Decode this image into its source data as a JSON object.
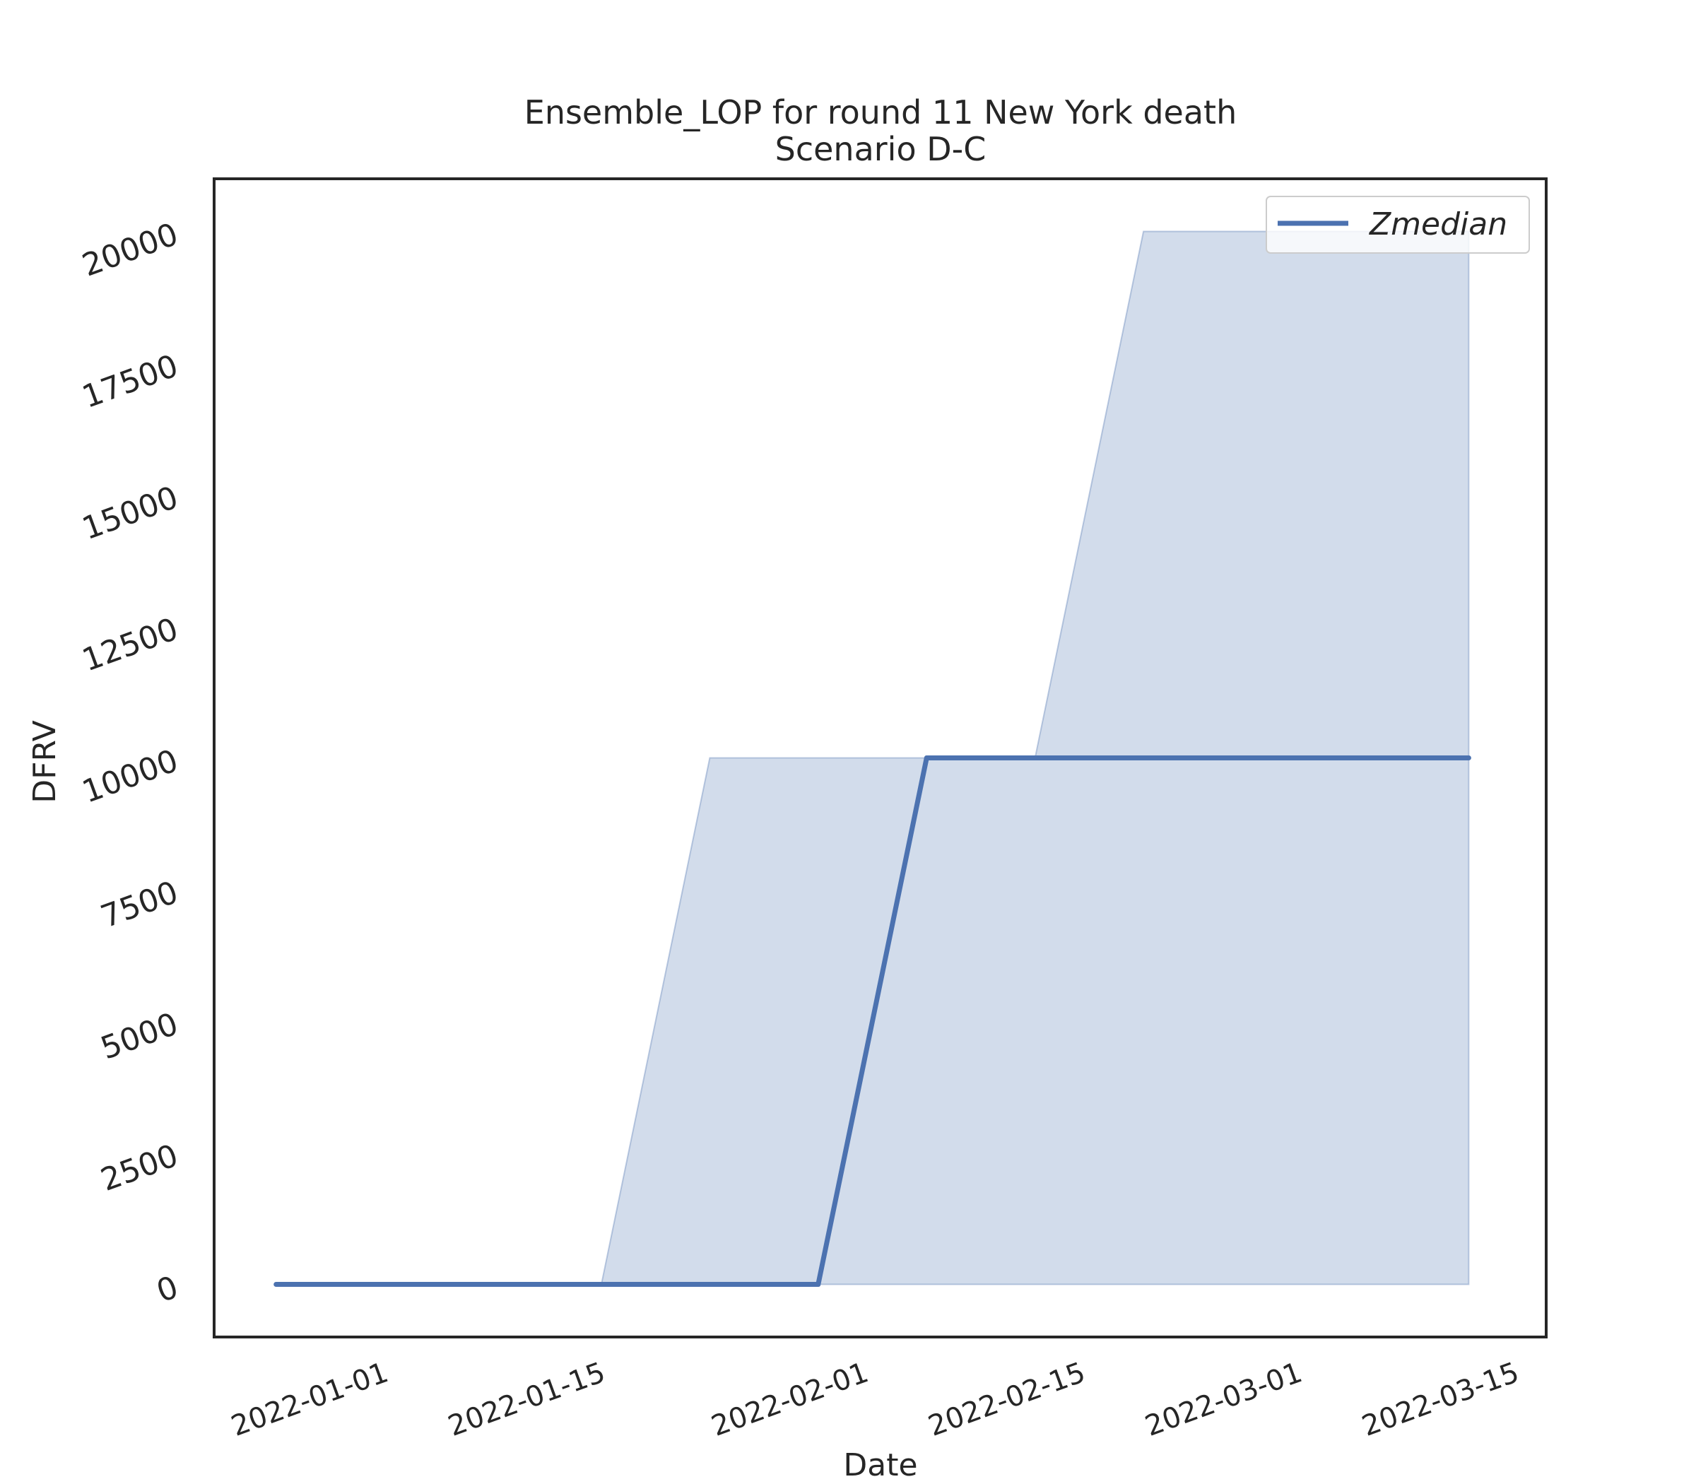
{
  "chart_data": {
    "type": "line",
    "title": "Ensemble_LOP for round 11 New York death",
    "subtitle": "Scenario D-C",
    "xlabel": "Date",
    "ylabel": "DFRV",
    "x_ticks": [
      "2022-01-01",
      "2022-01-15",
      "2022-02-01",
      "2022-02-15",
      "2022-03-01",
      "2022-03-15"
    ],
    "y_ticks": [
      0,
      2500,
      5000,
      7500,
      10000,
      12500,
      15000,
      17500,
      20000
    ],
    "x_range": [
      "2021-12-21",
      "2022-03-17"
    ],
    "ylim": [
      -1000,
      21000
    ],
    "grid": false,
    "legend_position": "top-right",
    "series": [
      {
        "name": "Zmedian",
        "color": "#4c72b0",
        "x": [
          "2021-12-25",
          "2022-01-01",
          "2022-01-08",
          "2022-01-15",
          "2022-01-22",
          "2022-01-29",
          "2022-02-05",
          "2022-02-12",
          "2022-02-19",
          "2022-02-26",
          "2022-03-05",
          "2022-03-12"
        ],
        "y": [
          0,
          0,
          0,
          0,
          0,
          0,
          10000,
          10000,
          10000,
          10000,
          10000,
          10000
        ]
      }
    ],
    "band": {
      "color": "#4c72b0",
      "opacity": 0.25,
      "x": [
        "2021-12-25",
        "2022-01-01",
        "2022-01-08",
        "2022-01-15",
        "2022-01-22",
        "2022-01-29",
        "2022-02-05",
        "2022-02-12",
        "2022-02-19",
        "2022-02-26",
        "2022-03-05",
        "2022-03-12"
      ],
      "lower": [
        0,
        0,
        0,
        0,
        0,
        0,
        0,
        0,
        0,
        0,
        0,
        0
      ],
      "upper": [
        0,
        0,
        0,
        0,
        10000,
        10000,
        10000,
        10000,
        20000,
        20000,
        20000,
        20000
      ]
    }
  }
}
